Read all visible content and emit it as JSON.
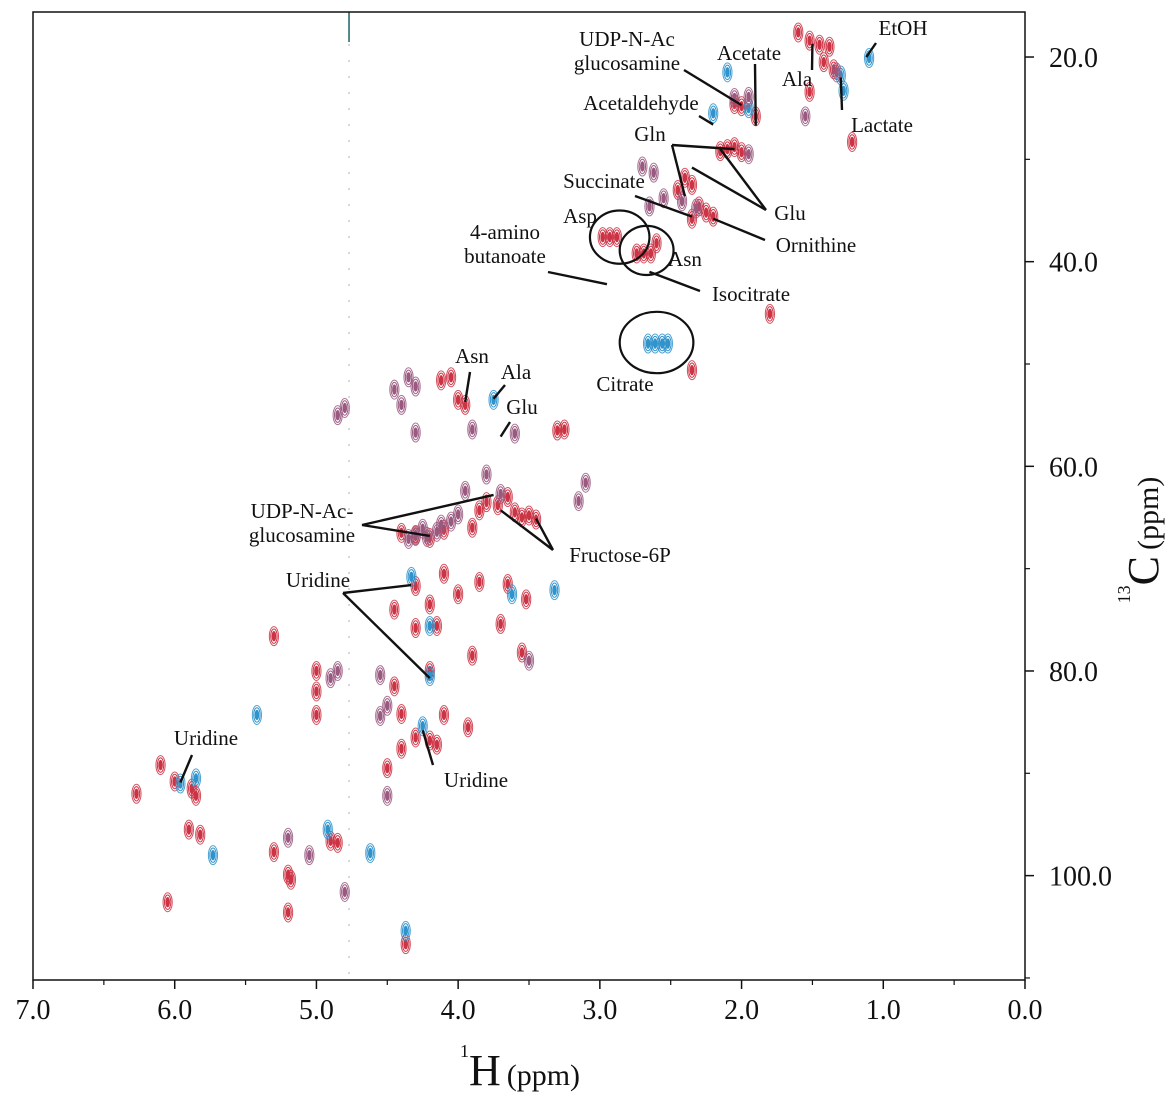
{
  "chart_data": {
    "type": "scatter",
    "title": "",
    "xlabel": {
      "sup": "1",
      "nucleus": "H",
      "unit": "(ppm)"
    },
    "ylabel": {
      "sup": "13",
      "nucleus": "C",
      "unit": "(ppm)"
    },
    "xlim": [
      7.0,
      0.0
    ],
    "ylim": [
      15.6,
      110.2
    ],
    "x_ticks": [
      "7.0",
      "6.0",
      "5.0",
      "4.0",
      "3.0",
      "2.0",
      "1.0",
      "0.0"
    ],
    "x_tick_values": [
      7.0,
      6.0,
      5.0,
      4.0,
      3.0,
      2.0,
      1.0,
      0.0
    ],
    "y_ticks": [
      "20.0",
      "40.0",
      "60.0",
      "80.0",
      "100.0"
    ],
    "y_tick_values": [
      20.0,
      40.0,
      60.0,
      80.0,
      100.0
    ],
    "colors": {
      "red": "#cc3344",
      "blue": "#2f93cc",
      "purple": "#9a5a80",
      "axis": "#111111"
    },
    "series": [
      {
        "color": "red",
        "peaks": [
          [
            1.6,
            17.6
          ],
          [
            1.52,
            18.4
          ],
          [
            1.45,
            18.8
          ],
          [
            1.42,
            20.5
          ],
          [
            1.38,
            19.0
          ],
          [
            1.35,
            21.2
          ],
          [
            2.05,
            24.6
          ],
          [
            2.0,
            24.8
          ],
          [
            2.15,
            29.2
          ],
          [
            2.1,
            29.0
          ],
          [
            2.05,
            28.8
          ],
          [
            2.0,
            29.3
          ],
          [
            2.4,
            31.8
          ],
          [
            2.35,
            32.5
          ],
          [
            2.45,
            33.0
          ],
          [
            2.3,
            34.6
          ],
          [
            2.25,
            35.2
          ],
          [
            2.2,
            35.6
          ],
          [
            2.35,
            35.8
          ],
          [
            2.98,
            37.6
          ],
          [
            2.93,
            37.6
          ],
          [
            2.88,
            37.6
          ],
          [
            2.74,
            39.2
          ],
          [
            2.69,
            39.2
          ],
          [
            2.64,
            39.2
          ],
          [
            2.6,
            38.2
          ],
          [
            1.8,
            45.1
          ],
          [
            2.35,
            50.6
          ],
          [
            4.12,
            51.6
          ],
          [
            4.05,
            51.3
          ],
          [
            4.0,
            53.5
          ],
          [
            3.95,
            54.0
          ],
          [
            3.85,
            64.3
          ],
          [
            3.8,
            63.5
          ],
          [
            3.72,
            63.8
          ],
          [
            3.65,
            63.0
          ],
          [
            3.6,
            64.5
          ],
          [
            3.5,
            64.8
          ],
          [
            3.45,
            65.2
          ],
          [
            3.55,
            65.0
          ],
          [
            4.4,
            66.5
          ],
          [
            4.3,
            66.8
          ],
          [
            4.2,
            67.0
          ],
          [
            4.1,
            66.2
          ],
          [
            3.9,
            66.0
          ],
          [
            4.3,
            71.7
          ],
          [
            4.1,
            70.5
          ],
          [
            4.0,
            72.5
          ],
          [
            3.85,
            71.3
          ],
          [
            3.65,
            71.5
          ],
          [
            3.52,
            73.0
          ],
          [
            4.45,
            74.0
          ],
          [
            4.3,
            75.8
          ],
          [
            4.15,
            75.6
          ],
          [
            3.7,
            75.4
          ],
          [
            3.55,
            78.2
          ],
          [
            3.9,
            78.5
          ],
          [
            4.2,
            80.0
          ],
          [
            4.45,
            81.5
          ],
          [
            4.4,
            84.2
          ],
          [
            4.1,
            84.3
          ],
          [
            3.93,
            85.5
          ],
          [
            4.3,
            86.5
          ],
          [
            4.2,
            86.8
          ],
          [
            4.15,
            87.2
          ],
          [
            4.4,
            87.6
          ],
          [
            4.5,
            89.5
          ],
          [
            6.1,
            89.2
          ],
          [
            6.0,
            90.8
          ],
          [
            5.88,
            91.5
          ],
          [
            5.85,
            92.2
          ],
          [
            6.27,
            92.0
          ],
          [
            5.9,
            95.5
          ],
          [
            5.82,
            96.0
          ],
          [
            4.9,
            96.6
          ],
          [
            4.85,
            96.8
          ],
          [
            5.3,
            97.7
          ],
          [
            5.2,
            99.9
          ],
          [
            5.18,
            100.4
          ],
          [
            6.05,
            102.6
          ],
          [
            5.2,
            103.6
          ],
          [
            4.37,
            106.7
          ],
          [
            3.3,
            56.5
          ],
          [
            3.25,
            56.4
          ],
          [
            5.0,
            84.3
          ],
          [
            5.0,
            80.0
          ],
          [
            5.0,
            82.0
          ],
          [
            5.3,
            76.6
          ],
          [
            4.2,
            73.5
          ],
          [
            1.22,
            28.3
          ],
          [
            1.9,
            25.8
          ],
          [
            1.52,
            23.4
          ]
        ]
      },
      {
        "color": "blue",
        "peaks": [
          [
            1.1,
            20.1
          ],
          [
            1.3,
            21.8
          ],
          [
            1.28,
            23.3
          ],
          [
            2.66,
            48.0
          ],
          [
            2.61,
            48.0
          ],
          [
            2.56,
            48.0
          ],
          [
            2.52,
            48.0
          ],
          [
            3.75,
            53.5
          ],
          [
            4.33,
            70.8
          ],
          [
            4.2,
            80.5
          ],
          [
            4.25,
            85.4
          ],
          [
            5.96,
            91.0
          ],
          [
            5.85,
            90.5
          ],
          [
            4.2,
            75.6
          ],
          [
            3.62,
            72.5
          ],
          [
            3.32,
            72.1
          ],
          [
            4.62,
            97.8
          ],
          [
            4.37,
            105.4
          ],
          [
            5.42,
            84.3
          ],
          [
            5.73,
            98.0
          ],
          [
            4.92,
            95.5
          ],
          [
            2.2,
            25.5
          ],
          [
            1.95,
            25.0
          ],
          [
            2.1,
            21.5
          ]
        ]
      },
      {
        "color": "purple",
        "peaks": [
          [
            4.3,
            52.2
          ],
          [
            4.35,
            51.3
          ],
          [
            4.45,
            52.5
          ],
          [
            4.8,
            54.3
          ],
          [
            4.85,
            55.0
          ],
          [
            4.4,
            54.0
          ],
          [
            4.3,
            56.7
          ],
          [
            3.8,
            60.8
          ],
          [
            3.95,
            62.4
          ],
          [
            3.7,
            62.7
          ],
          [
            4.0,
            64.7
          ],
          [
            4.05,
            65.4
          ],
          [
            4.12,
            65.7
          ],
          [
            4.25,
            66.1
          ],
          [
            4.3,
            66.7
          ],
          [
            4.35,
            67.1
          ],
          [
            4.15,
            66.4
          ],
          [
            4.22,
            66.9
          ],
          [
            1.33,
            21.5
          ],
          [
            2.05,
            24.0
          ],
          [
            1.95,
            29.5
          ],
          [
            2.32,
            34.8
          ],
          [
            2.42,
            34.1
          ],
          [
            2.55,
            33.8
          ],
          [
            2.62,
            31.3
          ],
          [
            2.7,
            30.7
          ],
          [
            2.65,
            34.6
          ],
          [
            1.95,
            23.9
          ],
          [
            1.55,
            25.8
          ],
          [
            3.9,
            56.4
          ],
          [
            3.6,
            56.8
          ],
          [
            4.85,
            80.0
          ],
          [
            4.9,
            80.7
          ],
          [
            4.55,
            80.4
          ],
          [
            4.55,
            84.4
          ],
          [
            4.5,
            83.4
          ],
          [
            5.2,
            96.3
          ],
          [
            5.05,
            98.0
          ],
          [
            4.8,
            101.6
          ],
          [
            4.5,
            92.2
          ],
          [
            3.5,
            79.0
          ],
          [
            3.1,
            61.6
          ],
          [
            3.15,
            63.4
          ]
        ]
      }
    ],
    "annotations": [
      {
        "lines": [
          "UDP-N-Ac",
          "glucosamine"
        ],
        "targets": [
          [
            2.0,
            24.7
          ]
        ]
      },
      {
        "lines": [
          "Acetate"
        ],
        "targets": [
          [
            1.9,
            26.7
          ]
        ]
      },
      {
        "lines": [
          "EtOH"
        ],
        "targets": [
          [
            1.12,
            20.0
          ]
        ]
      },
      {
        "lines": [
          "Ala"
        ],
        "targets": [
          [
            1.5,
            18.7
          ]
        ]
      },
      {
        "lines": [
          "Lactate"
        ],
        "targets": [
          [
            1.3,
            22.0
          ]
        ]
      },
      {
        "lines": [
          "Acetaldehyde"
        ],
        "targets": [
          [
            2.2,
            26.6
          ]
        ]
      },
      {
        "lines": [
          "Gln"
        ],
        "targets": [
          [
            2.4,
            33.6
          ],
          [
            2.05,
            29.0
          ]
        ]
      },
      {
        "lines": [
          "Glu"
        ],
        "targets": [
          [
            2.35,
            30.8
          ],
          [
            2.15,
            29.0
          ]
        ]
      },
      {
        "lines": [
          "Succinate"
        ],
        "targets": [
          [
            2.35,
            35.6
          ]
        ]
      },
      {
        "lines": [
          "Ornithine"
        ],
        "targets": [
          [
            2.2,
            35.8
          ]
        ]
      },
      {
        "lines": [
          "Asp"
        ],
        "targets": []
      },
      {
        "lines": [
          "Asn"
        ],
        "targets": []
      },
      {
        "lines": [
          "4-amino",
          "butanoate"
        ],
        "targets": [
          [
            2.95,
            42.2
          ]
        ]
      },
      {
        "lines": [
          "Isocitrate"
        ],
        "targets": [
          [
            2.65,
            41.0
          ]
        ]
      },
      {
        "lines": [
          "Citrate"
        ],
        "targets": []
      },
      {
        "lines": [
          "Asn"
        ],
        "targets": [
          [
            3.95,
            53.7
          ]
        ]
      },
      {
        "lines": [
          "Ala"
        ],
        "targets": [
          [
            3.75,
            53.4
          ]
        ]
      },
      {
        "lines": [
          "Glu"
        ],
        "targets": [
          [
            3.7,
            57.1
          ]
        ]
      },
      {
        "lines": [
          "UDP-N-Ac-",
          "glucosamine"
        ],
        "targets": [
          [
            3.75,
            62.8
          ],
          [
            4.2,
            66.8
          ]
        ]
      },
      {
        "lines": [
          "Fructose-6P"
        ],
        "targets": [
          [
            3.45,
            65.1
          ],
          [
            3.7,
            64.3
          ]
        ]
      },
      {
        "lines": [
          "Uridine"
        ],
        "targets": [
          [
            4.33,
            71.6
          ],
          [
            4.2,
            80.7
          ]
        ]
      },
      {
        "lines": [
          "Uridine"
        ],
        "targets": [
          [
            5.96,
            90.9
          ]
        ]
      },
      {
        "lines": [
          "Uridine"
        ],
        "targets": [
          [
            4.25,
            85.8
          ]
        ]
      }
    ],
    "circles": [
      {
        "name": "Asp",
        "center": [
          2.86,
          37.6
        ],
        "r": [
          0.21,
          2.6
        ]
      },
      {
        "name": "Asn",
        "center": [
          2.67,
          38.9
        ],
        "r": [
          0.19,
          2.4
        ]
      },
      {
        "name": "Citrate",
        "center": [
          2.6,
          47.9
        ],
        "r": [
          0.26,
          3.0
        ]
      }
    ],
    "grid": false,
    "legend": "none"
  }
}
